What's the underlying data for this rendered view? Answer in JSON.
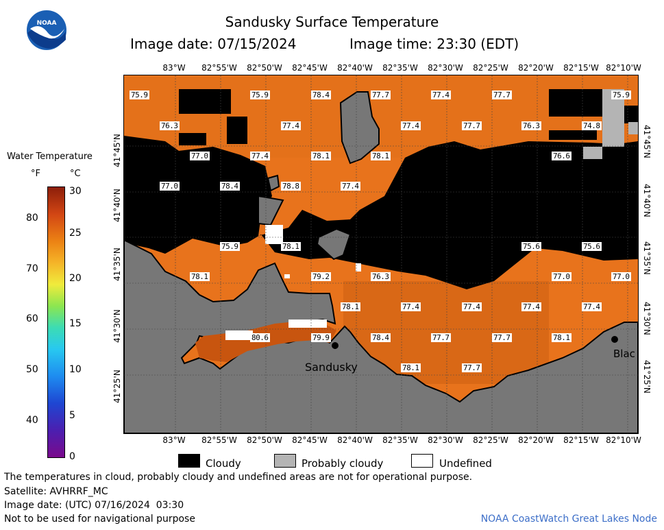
{
  "header": {
    "title": "Sandusky Surface Temperature",
    "image_date": "Image date: 07/15/2024",
    "image_time": "Image time: 23:30 (EDT)",
    "logo_text": "NOAA"
  },
  "colorbar": {
    "title": "Water Temperature",
    "unit_f": "°F",
    "unit_c": "°C",
    "f_ticks": [
      "80",
      "70",
      "60",
      "50",
      "40"
    ],
    "c_ticks": [
      "30",
      "25",
      "20",
      "15",
      "10",
      "5",
      "0"
    ]
  },
  "map": {
    "lon_labels": [
      "83°W",
      "82°55'W",
      "82°50'W",
      "82°45'W",
      "82°40'W",
      "82°35'W",
      "82°30'W",
      "82°25'W",
      "82°20'W",
      "82°15'W",
      "82°10'W"
    ],
    "lat_labels": [
      "41°45'N",
      "41°40'N",
      "41°35'N",
      "41°30'N",
      "41°25'N"
    ],
    "temperatures": [
      {
        "v": "75.9"
      },
      {
        "v": "75.9"
      },
      {
        "v": "78.4"
      },
      {
        "v": "77.7"
      },
      {
        "v": "77.4"
      },
      {
        "v": "77.7"
      },
      {
        "v": "75.9"
      },
      {
        "v": "76.3"
      },
      {
        "v": "77.4"
      },
      {
        "v": "77.4"
      },
      {
        "v": "77.7"
      },
      {
        "v": "76.3"
      },
      {
        "v": "74.8"
      },
      {
        "v": "77.0"
      },
      {
        "v": "77.4"
      },
      {
        "v": "78.1"
      },
      {
        "v": "78.1"
      },
      {
        "v": "76.6"
      },
      {
        "v": "77.0"
      },
      {
        "v": "78.4"
      },
      {
        "v": "78.8"
      },
      {
        "v": "77.4"
      },
      {
        "v": "75.9"
      },
      {
        "v": "78.1"
      },
      {
        "v": "75.6"
      },
      {
        "v": "75.6"
      },
      {
        "v": "78.1"
      },
      {
        "v": "79.2"
      },
      {
        "v": "76.3"
      },
      {
        "v": "77.0"
      },
      {
        "v": "77.0"
      },
      {
        "v": "78.1"
      },
      {
        "v": "77.4"
      },
      {
        "v": "77.4"
      },
      {
        "v": "77.4"
      },
      {
        "v": "77.4"
      },
      {
        "v": "80.6"
      },
      {
        "v": "79.9"
      },
      {
        "v": "78.4"
      },
      {
        "v": "77.7"
      },
      {
        "v": "77.7"
      },
      {
        "v": "78.1"
      },
      {
        "v": "78.1"
      },
      {
        "v": "77.7"
      }
    ],
    "places": {
      "sandusky": "Sandusky",
      "blac": "Blac"
    }
  },
  "legend": {
    "cloudy": "Cloudy",
    "probably_cloudy": "Probably cloudy",
    "undefined": "Undefined"
  },
  "footer": {
    "disclaimer": "The temperatures in cloud, probably cloudy and undefined areas are not for operational purpose.",
    "satellite": "Satellite: AVHRRF_MC",
    "utc_date": "Image date: (UTC) 07/16/2024  03:30",
    "nav": "Not to be used for navigational purpose",
    "credit": "NOAA CoastWatch Great Lakes Node"
  },
  "colors": {
    "cloudy": "#000000",
    "probably_cloudy": "#b4b4b4",
    "land": "#777777",
    "water": "#e8731c",
    "credit": "#3c6ec8"
  }
}
